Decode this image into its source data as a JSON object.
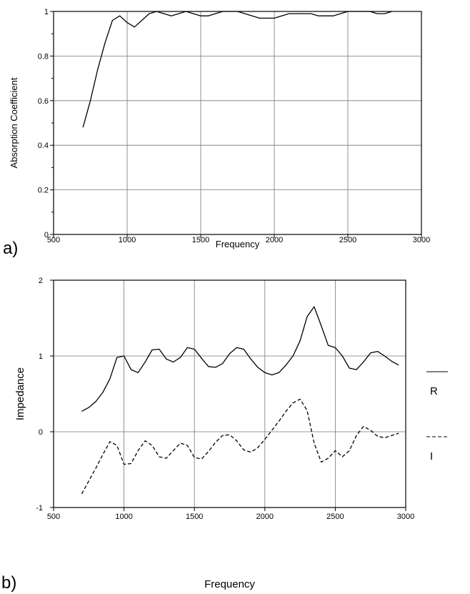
{
  "chart_data": [
    {
      "type": "line",
      "panel_label": "a)",
      "xlabel": "Frequency",
      "ylabel": "Absorption Coefficient",
      "xlim": [
        500,
        3000
      ],
      "ylim": [
        0,
        1
      ],
      "x_ticks": [
        500,
        1000,
        1500,
        2000,
        2500,
        3000
      ],
      "y_ticks": [
        0,
        0.2,
        0.4,
        0.6,
        0.8,
        1
      ],
      "y_tick_labels": [
        "0",
        "0.2",
        "0.4",
        "0.6",
        "0.8",
        "1"
      ],
      "grid": true,
      "series": [
        {
          "style": "solid",
          "x": [
            700,
            750,
            800,
            850,
            900,
            950,
            1000,
            1050,
            1100,
            1150,
            1200,
            1250,
            1300,
            1350,
            1400,
            1450,
            1500,
            1550,
            1600,
            1650,
            1700,
            1750,
            1800,
            1850,
            1900,
            1950,
            2000,
            2050,
            2100,
            2150,
            2200,
            2250,
            2300,
            2350,
            2400,
            2450,
            2500,
            2550,
            2600,
            2650,
            2700,
            2750,
            2800
          ],
          "values": [
            0.48,
            0.6,
            0.74,
            0.86,
            0.96,
            0.98,
            0.95,
            0.93,
            0.96,
            0.99,
            1.0,
            0.99,
            0.98,
            0.99,
            1.0,
            0.99,
            0.98,
            0.98,
            0.99,
            1.0,
            1.0,
            1.0,
            0.99,
            0.98,
            0.97,
            0.97,
            0.97,
            0.98,
            0.99,
            0.99,
            0.99,
            0.99,
            0.98,
            0.98,
            0.98,
            0.99,
            1.0,
            1.0,
            1.0,
            1.0,
            0.99,
            0.99,
            1.0
          ]
        }
      ]
    },
    {
      "type": "line",
      "panel_label": "b)",
      "xlabel": "Frequency",
      "ylabel": "Impedance",
      "xlim": [
        500,
        3000
      ],
      "ylim": [
        -1,
        2
      ],
      "x_ticks": [
        500,
        1000,
        1500,
        2000,
        2500,
        3000
      ],
      "y_ticks": [
        -1,
        0,
        1,
        2
      ],
      "y_tick_labels": [
        "-1",
        "0",
        "1",
        "2"
      ],
      "grid": true,
      "legend_position": "right",
      "series": [
        {
          "name": "R",
          "style": "solid",
          "x": [
            700,
            750,
            800,
            850,
            900,
            950,
            1000,
            1050,
            1100,
            1150,
            1200,
            1250,
            1300,
            1350,
            1400,
            1450,
            1500,
            1550,
            1600,
            1650,
            1700,
            1750,
            1800,
            1850,
            1900,
            1950,
            2000,
            2050,
            2100,
            2150,
            2200,
            2250,
            2300,
            2350,
            2400,
            2450,
            2500,
            2550,
            2600,
            2650,
            2700,
            2750,
            2800,
            2850,
            2900,
            2950
          ],
          "values": [
            0.27,
            0.32,
            0.4,
            0.52,
            0.7,
            0.98,
            1.0,
            0.82,
            0.78,
            0.92,
            1.08,
            1.09,
            0.96,
            0.92,
            0.98,
            1.11,
            1.09,
            0.97,
            0.86,
            0.85,
            0.9,
            1.03,
            1.11,
            1.09,
            0.96,
            0.85,
            0.78,
            0.75,
            0.78,
            0.88,
            1.0,
            1.2,
            1.52,
            1.65,
            1.4,
            1.14,
            1.11,
            1.0,
            0.84,
            0.82,
            0.92,
            1.04,
            1.06,
            1.0,
            0.93,
            0.88
          ]
        },
        {
          "name": "I",
          "style": "dashed",
          "x": [
            700,
            750,
            800,
            850,
            900,
            950,
            1000,
            1050,
            1100,
            1150,
            1200,
            1250,
            1300,
            1350,
            1400,
            1450,
            1500,
            1550,
            1600,
            1650,
            1700,
            1750,
            1800,
            1850,
            1900,
            1950,
            2000,
            2050,
            2100,
            2150,
            2200,
            2250,
            2300,
            2350,
            2400,
            2450,
            2500,
            2550,
            2600,
            2650,
            2700,
            2750,
            2800,
            2850,
            2900,
            2950
          ],
          "values": [
            -0.82,
            -0.65,
            -0.48,
            -0.3,
            -0.13,
            -0.18,
            -0.43,
            -0.42,
            -0.25,
            -0.12,
            -0.18,
            -0.33,
            -0.35,
            -0.25,
            -0.15,
            -0.18,
            -0.34,
            -0.36,
            -0.26,
            -0.14,
            -0.05,
            -0.04,
            -0.12,
            -0.24,
            -0.27,
            -0.21,
            -0.1,
            0.02,
            0.14,
            0.27,
            0.38,
            0.43,
            0.28,
            -0.15,
            -0.4,
            -0.35,
            -0.25,
            -0.33,
            -0.25,
            -0.05,
            0.07,
            0.02,
            -0.06,
            -0.08,
            -0.05,
            -0.02
          ]
        }
      ]
    }
  ]
}
